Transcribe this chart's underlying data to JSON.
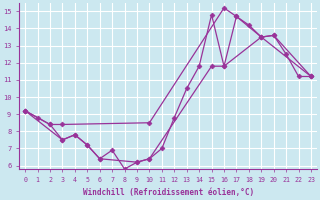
{
  "xlabel": "Windchill (Refroidissement éolien,°C)",
  "line_color": "#993399",
  "bg_color": "#cce8f0",
  "grid_color": "#ffffff",
  "xlim": [
    -0.5,
    23.5
  ],
  "ylim": [
    5.8,
    15.5
  ],
  "xticks": [
    0,
    1,
    2,
    3,
    4,
    5,
    6,
    7,
    8,
    9,
    10,
    11,
    12,
    13,
    14,
    15,
    16,
    17,
    18,
    19,
    20,
    21,
    22,
    23
  ],
  "yticks": [
    6,
    7,
    8,
    9,
    10,
    11,
    12,
    13,
    14,
    15
  ],
  "line1_x": [
    0,
    2,
    3,
    10,
    16,
    17,
    19,
    23
  ],
  "line1_y": [
    9.2,
    8.4,
    8.4,
    8.5,
    15.2,
    14.7,
    13.5,
    11.2
  ],
  "line2_x": [
    0,
    3,
    4,
    5,
    6,
    9,
    10,
    15,
    16,
    19,
    20,
    23
  ],
  "line2_y": [
    9.2,
    7.5,
    7.8,
    7.2,
    6.4,
    6.2,
    6.4,
    11.8,
    11.8,
    13.5,
    13.6,
    11.2
  ],
  "line3_x": [
    0,
    1,
    2,
    3,
    4,
    5,
    6,
    7,
    8,
    9,
    10,
    11,
    12,
    13,
    14,
    15,
    16,
    17,
    18,
    19,
    20,
    21,
    22,
    23
  ],
  "line3_y": [
    9.2,
    8.8,
    8.4,
    7.5,
    7.8,
    7.2,
    6.4,
    6.9,
    5.8,
    6.2,
    6.4,
    7.0,
    8.8,
    10.5,
    11.8,
    14.8,
    11.8,
    14.7,
    14.2,
    13.5,
    13.6,
    12.5,
    11.2,
    11.2
  ],
  "marker": "D",
  "markersize": 2.5,
  "linewidth": 0.9
}
